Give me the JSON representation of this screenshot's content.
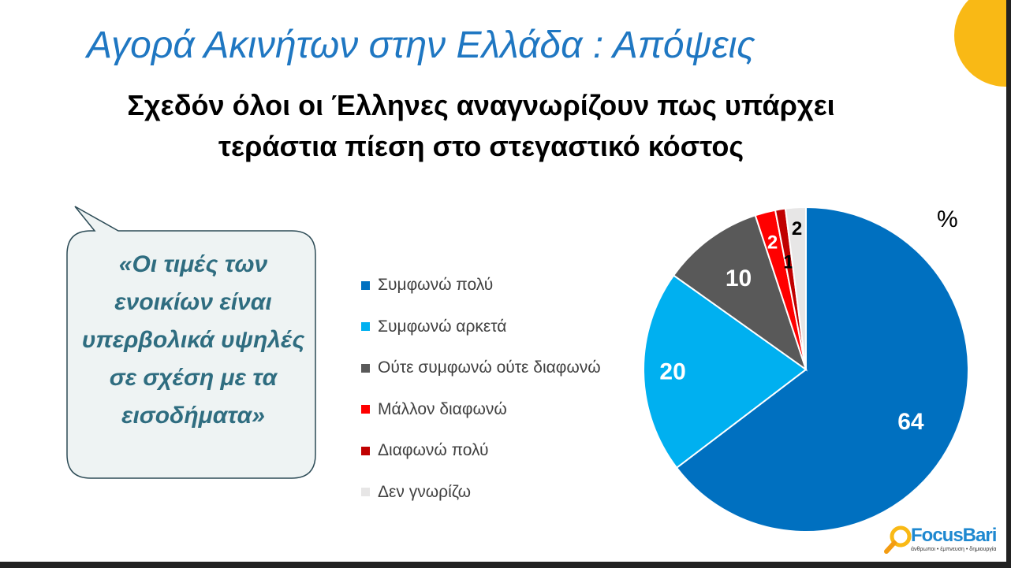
{
  "title": "Αγορά Ακινήτων στην Ελλάδα : Απόψεις",
  "subtitle_line1": "Σχεδόν όλοι οι Έλληνες αναγνωρίζουν πως υπάρχει",
  "subtitle_line2": "τεράστια πίεση στο στεγαστικό κόστος",
  "quote": "«Οι τιμές των ενοικίων είναι υπερβολικά υψηλές σε σχέση με τα εισοδήματα»",
  "logo": {
    "name": "FocusBari",
    "tagline": "άνθρωποι • έμπνευση • δημιουργία"
  },
  "chart_data": {
    "type": "pie",
    "unit_label": "%",
    "legend_position": "left",
    "categories": [
      "Συμφωνώ πολύ",
      "Συμφωνώ αρκετά",
      "Ούτε συμφωνώ ούτε διαφωνώ",
      "Μάλλον διαφωνώ",
      "Διαφωνώ πολύ",
      "Δεν γνωρίζω"
    ],
    "values": [
      64,
      20,
      10,
      2,
      1,
      2
    ],
    "colors": [
      "#0070c0",
      "#00b0f0",
      "#595959",
      "#ff0000",
      "#c00000",
      "#e7e6e6"
    ],
    "label_colors": [
      "#fff",
      "#fff",
      "#fff",
      "#fff",
      "#000",
      "#000"
    ]
  }
}
